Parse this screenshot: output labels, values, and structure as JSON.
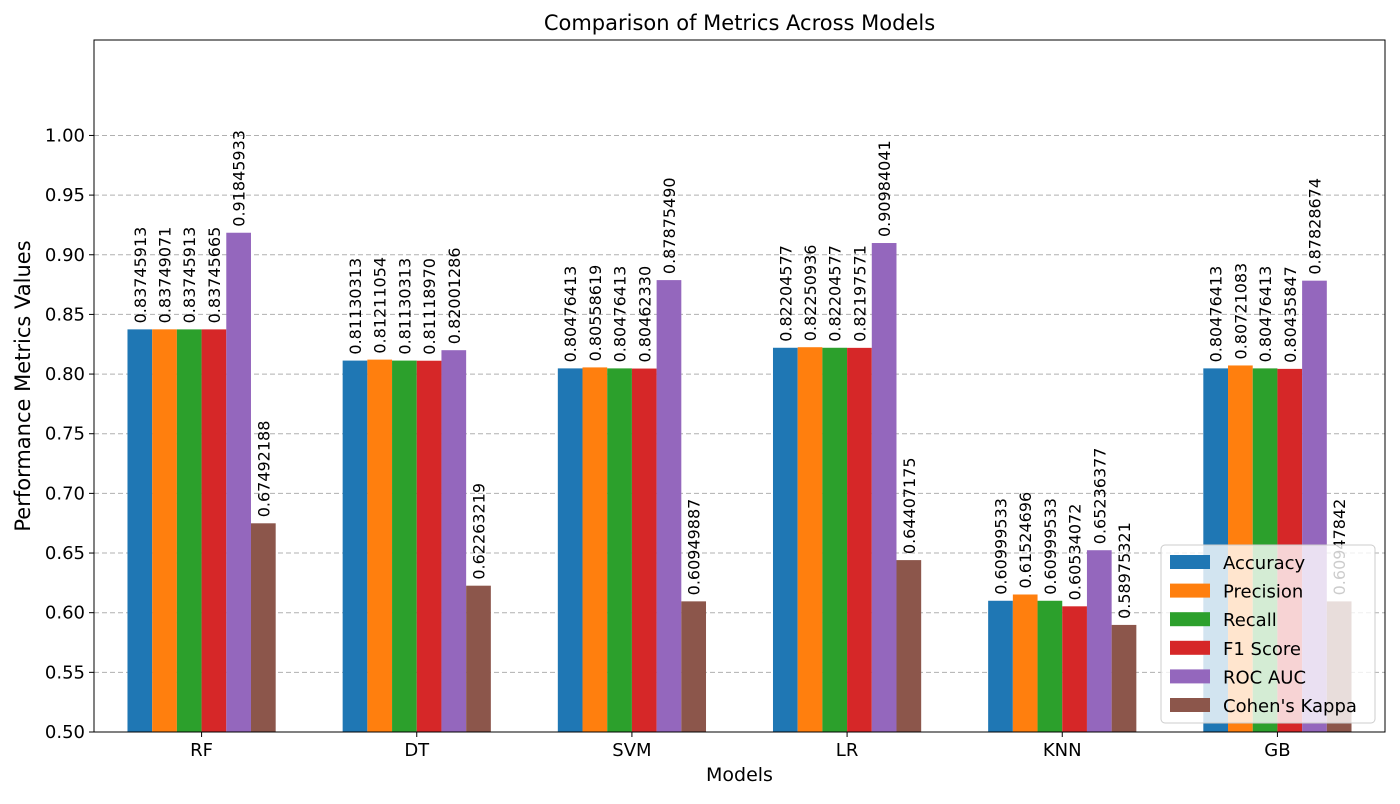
{
  "chart_data": {
    "type": "bar",
    "title": "Comparison of Metrics Across Models",
    "xlabel": "Models",
    "ylabel": "Performance Metrics Values",
    "categories": [
      "RF",
      "DT",
      "SVM",
      "LR",
      "KNN",
      "GB"
    ],
    "ylim": [
      0.5,
      1.08
    ],
    "yticks": [
      "0.50",
      "0.55",
      "0.60",
      "0.65",
      "0.70",
      "0.75",
      "0.80",
      "0.85",
      "0.90",
      "0.95",
      "1.00"
    ],
    "grid": "horizontal dashed",
    "legend_position": "bottom-right",
    "series": [
      {
        "name": "Accuracy",
        "color": "#1f77b4",
        "values": [
          0.83745913,
          0.81130313,
          0.80476413,
          0.82204577,
          0.60999533,
          0.80476413
        ],
        "labels": [
          "0.83745913",
          "0.81130313",
          "0.80476413",
          "0.82204577",
          "0.60999533",
          "0.80476413"
        ]
      },
      {
        "name": "Precision",
        "color": "#ff7f0e",
        "values": [
          0.83749071,
          0.81211054,
          0.80558619,
          0.82250936,
          0.61524696,
          0.80721083
        ],
        "labels": [
          "0.83749071",
          "0.81211054",
          "0.80558619",
          "0.82250936",
          "0.61524696",
          "0.80721083"
        ]
      },
      {
        "name": "Recall",
        "color": "#2ca02c",
        "values": [
          0.83745913,
          0.81130313,
          0.80476413,
          0.82204577,
          0.60999533,
          0.80476413
        ],
        "labels": [
          "0.83745913",
          "0.81130313",
          "0.80476413",
          "0.82204577",
          "0.60999533",
          "0.80476413"
        ]
      },
      {
        "name": "F1 Score",
        "color": "#d62728",
        "values": [
          0.83745665,
          0.8111897,
          0.8046233,
          0.82197571,
          0.60534072,
          0.80435847
        ],
        "labels": [
          "0.83745665",
          "0.81118970",
          "0.80462330",
          "0.82197571",
          "0.60534072",
          "0.80435847"
        ]
      },
      {
        "name": "ROC AUC",
        "color": "#9467bd",
        "values": [
          0.91845933,
          0.82001286,
          0.8787549,
          0.90984041,
          0.65236377,
          0.87828674
        ],
        "labels": [
          "0.91845933",
          "0.82001286",
          "0.87875490",
          "0.90984041",
          "0.65236377",
          "0.87828674"
        ]
      },
      {
        "name": "Cohen's Kappa",
        "color": "#8c564b",
        "values": [
          0.67492188,
          0.62263219,
          0.60949887,
          0.64407175,
          0.58975321,
          0.60947842
        ],
        "labels": [
          "0.67492188",
          "0.62263219",
          "0.60949887",
          "0.64407175",
          "0.58975321",
          "0.60947842"
        ]
      }
    ]
  }
}
